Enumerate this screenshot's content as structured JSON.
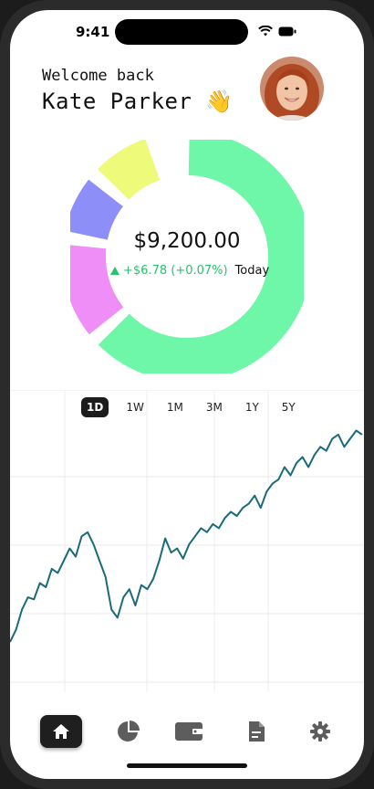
{
  "status": {
    "time": "9:41"
  },
  "header": {
    "greeting": "Welcome back",
    "user_name": "Kate Parker 👋"
  },
  "portfolio": {
    "balance": "$9,200.00",
    "change": "+$6.78 (+0.07%)",
    "period": "Today",
    "allocation": [
      {
        "share": 0.64,
        "color": "#6ef7a8"
      },
      {
        "share": 0.14,
        "color": "#ee8ef6"
      },
      {
        "share": 0.09,
        "color": "#8e8ef8"
      },
      {
        "share": 0.09,
        "color": "#eefa7a"
      }
    ]
  },
  "ranges": {
    "items": [
      "1D",
      "1W",
      "1M",
      "3M",
      "1Y",
      "5Y"
    ],
    "selected": "1D"
  },
  "chart_data": {
    "type": "line",
    "series": [
      {
        "color": "#1a6b78",
        "values": [
          0.04,
          0.1,
          0.2,
          0.26,
          0.25,
          0.33,
          0.31,
          0.4,
          0.38,
          0.44,
          0.5,
          0.46,
          0.56,
          0.58,
          0.52,
          0.44,
          0.36,
          0.2,
          0.16,
          0.26,
          0.3,
          0.22,
          0.32,
          0.3,
          0.35,
          0.44,
          0.55,
          0.48,
          0.5,
          0.45,
          0.52,
          0.56,
          0.6,
          0.58,
          0.62,
          0.6,
          0.65,
          0.68,
          0.66,
          0.7,
          0.72,
          0.76,
          0.7,
          0.78,
          0.82,
          0.84,
          0.9,
          0.86,
          0.92,
          0.95,
          0.9,
          0.96,
          1.0,
          0.98,
          1.04,
          1.06,
          1.0,
          1.04,
          1.08,
          1.06
        ]
      }
    ]
  },
  "tabbar": {
    "items": [
      {
        "icon": "home-icon",
        "active": true
      },
      {
        "icon": "pie-chart-icon",
        "active": false
      },
      {
        "icon": "wallet-icon",
        "active": false
      },
      {
        "icon": "document-icon",
        "active": false
      },
      {
        "icon": "gear-icon",
        "active": false
      }
    ]
  }
}
